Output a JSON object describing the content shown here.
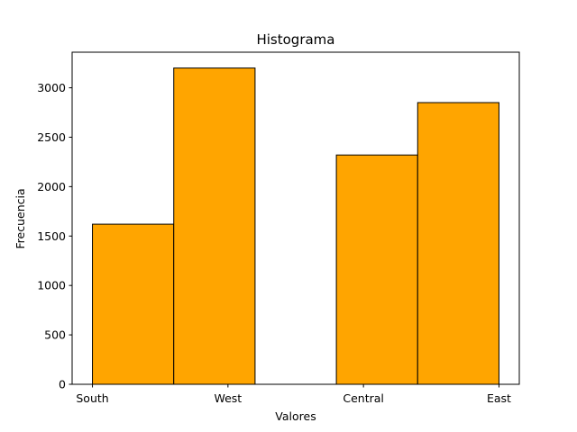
{
  "chart_data": {
    "type": "bar",
    "title": "Histograma",
    "xlabel": "Valores",
    "ylabel": "Frecuencia",
    "bins": [
      {
        "x0": 0.0,
        "x1": 0.6,
        "value": 1620
      },
      {
        "x0": 0.6,
        "x1": 1.2,
        "value": 3200
      },
      {
        "x0": 1.2,
        "x1": 1.8,
        "value": 0
      },
      {
        "x0": 1.8,
        "x1": 2.4,
        "value": 2320
      },
      {
        "x0": 2.4,
        "x1": 3.0,
        "value": 2850
      }
    ],
    "x_ticks": [
      {
        "value": 0,
        "label": "South"
      },
      {
        "value": 1,
        "label": "West"
      },
      {
        "value": 2,
        "label": "Central"
      },
      {
        "value": 3,
        "label": "East"
      }
    ],
    "xlim": [
      -0.15,
      3.15
    ],
    "ylim": [
      0,
      3360
    ],
    "y_ticks": [
      0,
      500,
      1000,
      1500,
      2000,
      2500,
      3000
    ],
    "grid": false,
    "colors": {
      "bar_fill": "#ffa500",
      "bar_edge": "#000000"
    }
  }
}
